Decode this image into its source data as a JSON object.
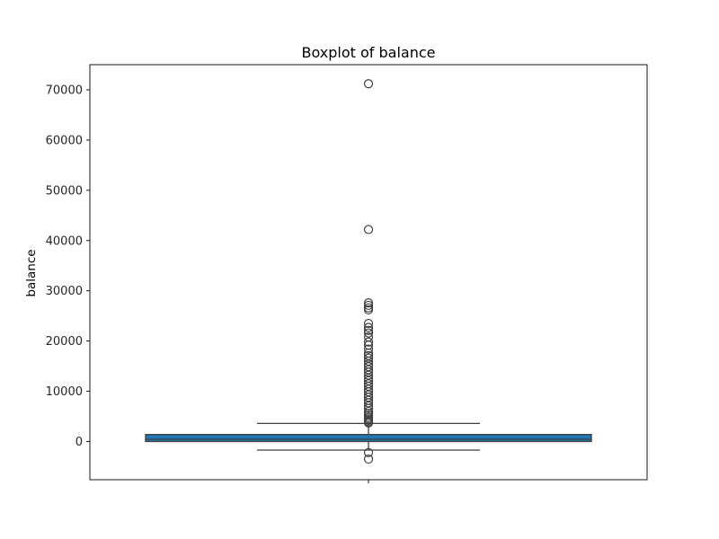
{
  "chart_data": {
    "type": "boxplot",
    "title": "Boxplot of balance",
    "xlabel": "",
    "ylabel": "balance",
    "ylim": [
      -7600,
      75000
    ],
    "yticks": [
      0,
      10000,
      20000,
      30000,
      40000,
      50000,
      60000,
      70000
    ],
    "ytick_labels": [
      "0",
      "10000",
      "20000",
      "30000",
      "40000",
      "50000",
      "60000",
      "70000"
    ],
    "grid": false,
    "colors": {
      "box": "#1f77b4",
      "lines": "#3f3f3f"
    },
    "series": [
      {
        "variable": "balance",
        "box": {
          "whisker_low": -1700,
          "q1": 0,
          "median": 450,
          "q3": 1400,
          "whisker_high": 3600
        },
        "outliers": [
          71200,
          42200,
          27600,
          27100,
          26600,
          26200,
          23500,
          22700,
          22100,
          21600,
          20800,
          19800,
          19200,
          18400,
          17600,
          17100,
          16600,
          16000,
          15400,
          14900,
          14300,
          13800,
          13200,
          12600,
          12100,
          11500,
          11000,
          10400,
          9900,
          9300,
          8800,
          8200,
          7700,
          7100,
          6600,
          6000,
          5600,
          5200,
          4800,
          4500,
          4200,
          3900,
          3700,
          -2200,
          -3500
        ]
      }
    ]
  }
}
